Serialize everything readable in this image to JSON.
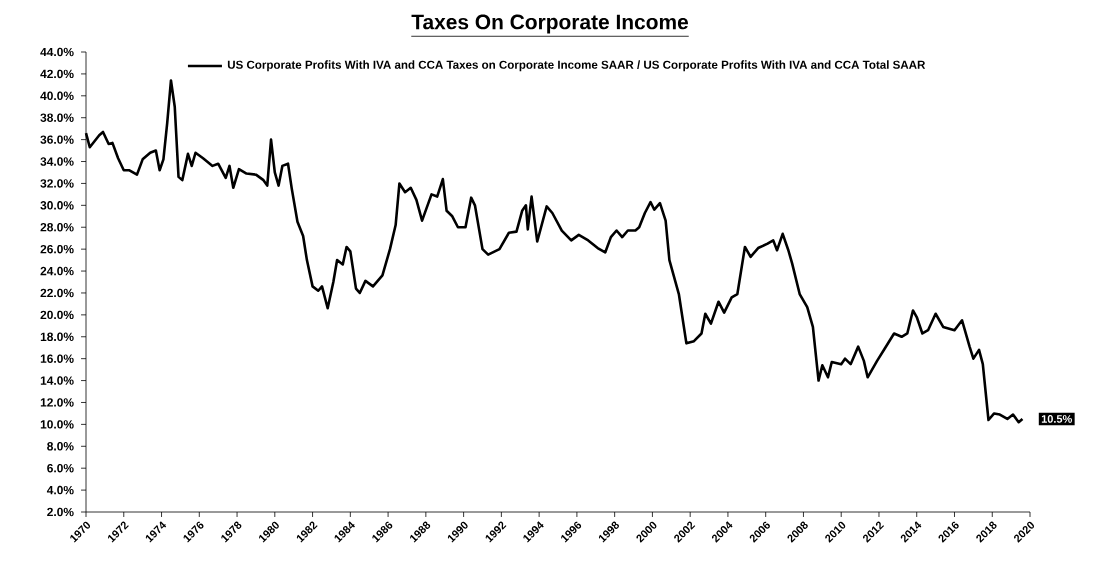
{
  "chart_data": {
    "type": "line",
    "title": "Taxes On Corporate Income",
    "series": [
      {
        "name": "US Corporate Profits With IVA and CCA Taxes on Corporate Income SAAR / US Corporate Profits With IVA and CCA Total SAAR",
        "color": "#000000",
        "x": [
          1970.0,
          1970.2,
          1970.7,
          1970.9,
          1971.2,
          1971.4,
          1971.7,
          1972.0,
          1972.3,
          1972.7,
          1973.0,
          1973.4,
          1973.7,
          1973.9,
          1974.1,
          1974.3,
          1974.5,
          1974.7,
          1974.9,
          1975.1,
          1975.4,
          1975.6,
          1975.8,
          1976.2,
          1976.7,
          1977.0,
          1977.4,
          1977.6,
          1977.8,
          1978.1,
          1978.5,
          1979.0,
          1979.4,
          1979.6,
          1979.8,
          1980.0,
          1980.2,
          1980.4,
          1980.7,
          1980.9,
          1981.2,
          1981.5,
          1981.7,
          1982.0,
          1982.3,
          1982.5,
          1982.8,
          1983.1,
          1983.3,
          1983.6,
          1983.8,
          1984.0,
          1984.3,
          1984.5,
          1984.8,
          1985.2,
          1985.7,
          1986.1,
          1986.4,
          1986.6,
          1986.9,
          1987.2,
          1987.5,
          1987.8,
          1988.3,
          1988.6,
          1988.9,
          1989.1,
          1989.4,
          1989.7,
          1990.1,
          1990.4,
          1990.6,
          1991.0,
          1991.3,
          1991.9,
          1992.4,
          1992.8,
          1993.1,
          1993.3,
          1993.4,
          1993.6,
          1993.9,
          1994.4,
          1994.7,
          1995.2,
          1995.7,
          1996.1,
          1996.6,
          1997.1,
          1997.5,
          1997.8,
          1998.1,
          1998.4,
          1998.7,
          1999.1,
          1999.3,
          1999.6,
          1999.9,
          2000.1,
          2000.4,
          2000.7,
          2000.9,
          2001.4,
          2001.8,
          2002.2,
          2002.6,
          2002.8,
          2003.1,
          2003.5,
          2003.8,
          2004.2,
          2004.5,
          2004.9,
          2005.2,
          2005.6,
          2006.1,
          2006.4,
          2006.6,
          2006.9,
          2007.2,
          2007.4,
          2007.8,
          2008.2,
          2008.5,
          2008.8,
          2009.0,
          2009.3,
          2009.5,
          2010.0,
          2010.2,
          2010.5,
          2010.9,
          2011.2,
          2011.4,
          2011.9,
          2012.3,
          2012.8,
          2013.2,
          2013.5,
          2013.8,
          2014.0,
          2014.3,
          2014.6,
          2015.0,
          2015.4,
          2016.0,
          2016.4,
          2016.8,
          2017.0,
          2017.3,
          2017.5,
          2017.8,
          2018.1,
          2018.4,
          2018.8,
          2019.1,
          2019.4,
          2019.6
        ],
        "values": [
          36.6,
          35.3,
          36.4,
          36.7,
          35.6,
          35.7,
          34.3,
          33.2,
          33.2,
          32.8,
          34.2,
          34.8,
          35.0,
          33.2,
          34.2,
          37.5,
          41.4,
          39.0,
          32.6,
          32.3,
          34.7,
          33.6,
          34.8,
          34.3,
          33.6,
          33.8,
          32.5,
          33.6,
          31.6,
          33.3,
          32.9,
          32.8,
          32.3,
          31.8,
          36.0,
          33.0,
          31.8,
          33.6,
          33.8,
          31.5,
          28.5,
          27.2,
          25.0,
          22.6,
          22.2,
          22.6,
          20.6,
          23.0,
          25.0,
          24.6,
          26.2,
          25.8,
          22.4,
          22.0,
          23.1,
          22.6,
          23.6,
          26.0,
          28.2,
          32.0,
          31.2,
          31.6,
          30.5,
          28.6,
          31.0,
          30.8,
          32.4,
          29.5,
          29.0,
          28.0,
          28.0,
          30.7,
          30.0,
          26.0,
          25.5,
          26.0,
          27.5,
          27.6,
          29.5,
          30.0,
          27.8,
          30.8,
          26.7,
          29.9,
          29.3,
          27.7,
          26.8,
          27.3,
          26.8,
          26.1,
          25.7,
          27.1,
          27.7,
          27.1,
          27.7,
          27.7,
          28.0,
          29.3,
          30.3,
          29.6,
          30.2,
          28.6,
          25.0,
          21.9,
          17.4,
          17.6,
          18.3,
          20.1,
          19.2,
          21.2,
          20.2,
          21.6,
          21.9,
          26.2,
          25.3,
          26.1,
          26.5,
          26.8,
          25.9,
          27.4,
          25.9,
          24.7,
          21.9,
          20.7,
          18.9,
          14.0,
          15.4,
          14.3,
          15.7,
          15.5,
          16.0,
          15.5,
          17.1,
          15.8,
          14.3,
          15.8,
          16.9,
          18.3,
          18.0,
          18.3,
          20.4,
          19.8,
          18.3,
          18.6,
          20.1,
          18.9,
          18.6,
          19.5,
          17.1,
          16.0,
          16.8,
          15.5,
          10.4,
          11.0,
          10.9,
          10.5,
          10.9,
          10.2,
          10.5
        ]
      }
    ],
    "xlim": [
      1970,
      2020
    ],
    "xticks": [
      1970,
      1972,
      1974,
      1976,
      1978,
      1980,
      1982,
      1984,
      1986,
      1988,
      1990,
      1992,
      1994,
      1996,
      1998,
      2000,
      2002,
      2004,
      2006,
      2008,
      2010,
      2012,
      2014,
      2016,
      2018,
      2020
    ],
    "ylim": [
      2,
      44
    ],
    "yticks": [
      {
        "value": 2,
        "label": "2.0%"
      },
      {
        "value": 4,
        "label": "4.0%"
      },
      {
        "value": 6,
        "label": "6.0%"
      },
      {
        "value": 8,
        "label": "8.0%"
      },
      {
        "value": 10,
        "label": "10.0%"
      },
      {
        "value": 12,
        "label": "12.0%"
      },
      {
        "value": 14,
        "label": "14.0%"
      },
      {
        "value": 16,
        "label": "16.0%"
      },
      {
        "value": 18,
        "label": "18.0%"
      },
      {
        "value": 20,
        "label": "20.0%"
      },
      {
        "value": 22,
        "label": "22.0%"
      },
      {
        "value": 24,
        "label": "24.0%"
      },
      {
        "value": 26,
        "label": "26.0%"
      },
      {
        "value": 28,
        "label": "28.0%"
      },
      {
        "value": 30,
        "label": "30.0%"
      },
      {
        "value": 32,
        "label": "32.0%"
      },
      {
        "value": 34,
        "label": "34.0%"
      },
      {
        "value": 36,
        "label": "36.0%"
      },
      {
        "value": 38,
        "label": "38.0%"
      },
      {
        "value": 40,
        "label": "40.0%"
      },
      {
        "value": 42,
        "label": "42.0%"
      },
      {
        "value": 44,
        "label": "44.0%"
      }
    ],
    "annotations": [
      {
        "text": "10.5%",
        "x": 2019.6,
        "y": 10.5
      }
    ],
    "legend": "top",
    "marker": "none",
    "line_style": "solid"
  }
}
